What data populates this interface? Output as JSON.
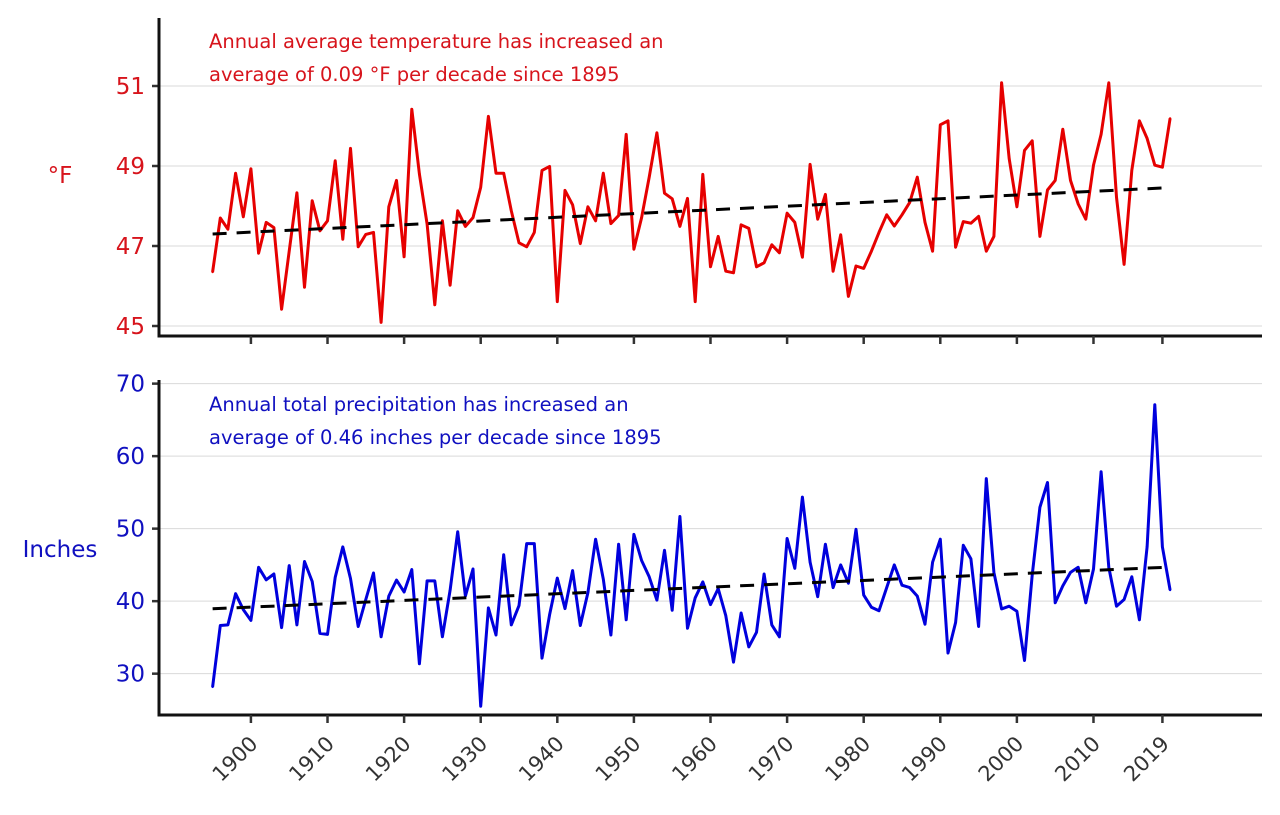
{
  "chart_data": [
    {
      "type": "line",
      "id": "temperature",
      "title": "",
      "annotation": [
        "Annual average temperature has increased an",
        "average of 0.09 °F per decade since 1895"
      ],
      "xlabel": "",
      "ylabel": "°F",
      "color": "#e60000",
      "text_color": "#d7141c",
      "yticks": [
        45,
        47,
        49,
        51
      ],
      "ylim": [
        44.75,
        52.7
      ],
      "xlim": [
        1888,
        2032
      ],
      "grid": true,
      "x": [
        1895,
        1896,
        1897,
        1898,
        1899,
        1900,
        1901,
        1902,
        1903,
        1904,
        1905,
        1906,
        1907,
        1908,
        1909,
        1910,
        1911,
        1912,
        1913,
        1914,
        1915,
        1916,
        1917,
        1918,
        1919,
        1920,
        1921,
        1922,
        1923,
        1924,
        1925,
        1926,
        1927,
        1928,
        1929,
        1930,
        1931,
        1932,
        1933,
        1934,
        1935,
        1936,
        1937,
        1938,
        1939,
        1940,
        1941,
        1942,
        1943,
        1944,
        1945,
        1946,
        1947,
        1948,
        1949,
        1950,
        1951,
        1952,
        1953,
        1954,
        1955,
        1956,
        1957,
        1958,
        1959,
        1960,
        1961,
        1962,
        1963,
        1964,
        1965,
        1966,
        1967,
        1968,
        1969,
        1970,
        1971,
        1972,
        1973,
        1974,
        1975,
        1976,
        1977,
        1978,
        1979,
        1980,
        1981,
        1982,
        1983,
        1984,
        1985,
        1986,
        1987,
        1988,
        1989,
        1990,
        1991,
        1992,
        1993,
        1994,
        1995,
        1996,
        1997,
        1998,
        1999,
        2000,
        2001,
        2002,
        2003,
        2004,
        2005,
        2006,
        2007,
        2008,
        2009,
        2010,
        2011,
        2012,
        2013,
        2014,
        2015,
        2016,
        2017,
        2018,
        2019,
        2020
      ],
      "values": [
        46.35,
        47.7,
        47.42,
        48.82,
        47.73,
        48.93,
        46.82,
        47.59,
        47.46,
        45.42,
        46.87,
        48.33,
        45.97,
        48.13,
        47.38,
        47.63,
        49.13,
        47.17,
        49.44,
        46.98,
        47.29,
        47.34,
        45.09,
        47.98,
        48.64,
        46.73,
        50.42,
        48.8,
        47.55,
        45.53,
        47.63,
        46.02,
        47.88,
        47.49,
        47.71,
        48.47,
        50.24,
        48.82,
        48.82,
        47.88,
        47.08,
        46.98,
        47.34,
        48.89,
        48.99,
        45.61,
        48.39,
        48.03,
        47.06,
        47.98,
        47.63,
        48.82,
        47.56,
        47.76,
        49.79,
        46.92,
        47.71,
        48.72,
        49.83,
        48.32,
        48.18,
        47.49,
        48.19,
        45.61,
        48.79,
        46.48,
        47.24,
        46.37,
        46.33,
        47.53,
        47.44,
        46.48,
        46.58,
        47.03,
        46.83,
        47.82,
        47.59,
        46.72,
        49.04,
        47.67,
        48.29,
        46.37,
        47.28,
        45.74,
        46.5,
        46.44,
        46.87,
        47.34,
        47.78,
        47.5,
        47.78,
        48.09,
        48.72,
        47.59,
        46.87,
        50.03,
        50.13,
        46.97,
        47.61,
        47.57,
        47.74,
        46.87,
        47.24,
        51.08,
        49.18,
        47.98,
        49.39,
        49.63,
        47.24,
        48.4,
        48.64,
        49.92,
        48.64,
        48.05,
        47.67,
        49.02,
        49.79,
        51.08,
        48.22,
        46.54,
        48.89,
        50.13,
        49.69,
        49.02,
        48.97,
        50.19
      ],
      "trend": {
        "x": [
          1895,
          2020
        ],
        "values": [
          47.3,
          48.46
        ],
        "rate_per_decade": 0.09
      }
    },
    {
      "type": "line",
      "id": "precipitation",
      "title": "",
      "annotation": [
        "Annual total precipitation has increased an",
        "average of 0.46 inches per decade since 1895"
      ],
      "xlabel": "",
      "ylabel": "Inches",
      "color": "#0000dd",
      "text_color": "#1010c0",
      "yticks": [
        30,
        40,
        50,
        60,
        70
      ],
      "ylim": [
        24.3,
        70.5
      ],
      "xlim": [
        1888,
        2032
      ],
      "grid": true,
      "x": [
        1895,
        1896,
        1897,
        1898,
        1899,
        1900,
        1901,
        1902,
        1903,
        1904,
        1905,
        1906,
        1907,
        1908,
        1909,
        1910,
        1911,
        1912,
        1913,
        1914,
        1915,
        1916,
        1917,
        1918,
        1919,
        1920,
        1921,
        1922,
        1923,
        1924,
        1925,
        1926,
        1927,
        1928,
        1929,
        1930,
        1931,
        1932,
        1933,
        1934,
        1935,
        1936,
        1937,
        1938,
        1939,
        1940,
        1941,
        1942,
        1943,
        1944,
        1945,
        1946,
        1947,
        1948,
        1949,
        1950,
        1951,
        1952,
        1953,
        1954,
        1955,
        1956,
        1957,
        1958,
        1959,
        1960,
        1961,
        1962,
        1963,
        1964,
        1965,
        1966,
        1967,
        1968,
        1969,
        1970,
        1971,
        1972,
        1973,
        1974,
        1975,
        1976,
        1977,
        1978,
        1979,
        1980,
        1981,
        1982,
        1983,
        1984,
        1985,
        1986,
        1987,
        1988,
        1989,
        1990,
        1991,
        1992,
        1993,
        1994,
        1995,
        1996,
        1997,
        1998,
        1999,
        2000,
        2001,
        2002,
        2003,
        2004,
        2005,
        2006,
        2007,
        2008,
        2009,
        2010,
        2011,
        2012,
        2013,
        2014,
        2015,
        2016,
        2017,
        2018,
        2019,
        2020
      ],
      "values": [
        28.18,
        36.64,
        36.73,
        41.03,
        38.83,
        37.34,
        44.67,
        42.94,
        43.74,
        36.36,
        44.91,
        36.73,
        45.47,
        42.71,
        35.56,
        35.42,
        43.27,
        47.48,
        43.13,
        36.5,
        40.23,
        43.88,
        35.09,
        40.7,
        42.9,
        41.26,
        44.35,
        31.36,
        42.8,
        42.8,
        35.09,
        41.5,
        49.58,
        40.7,
        44.44,
        25.51,
        39.07,
        35.33,
        46.4,
        36.73,
        39.39,
        47.94,
        47.94,
        32.15,
        38.13,
        43.18,
        38.97,
        44.21,
        36.64,
        41.17,
        48.55,
        43.04,
        35.33,
        47.85,
        37.43,
        49.21,
        45.61,
        43.36,
        40.14,
        47.01,
        38.74,
        51.68,
        36.26,
        40.47,
        42.66,
        39.53,
        41.73,
        37.99,
        31.59,
        38.36,
        33.69,
        35.7,
        43.74,
        36.73,
        35.09,
        48.64,
        44.53,
        54.35,
        45.37,
        40.61,
        47.85,
        41.87,
        45.0,
        42.48,
        49.91,
        40.84,
        39.16,
        38.69,
        41.87,
        45.0,
        42.2,
        41.87,
        40.7,
        36.82,
        45.37,
        48.55,
        32.85,
        37.06,
        47.71,
        45.84,
        36.5,
        56.9,
        43.97,
        38.93,
        39.3,
        38.6,
        31.82,
        43.6,
        52.94,
        56.36,
        39.77,
        42.1,
        43.97,
        44.67,
        39.77,
        44.44,
        57.85,
        44.67,
        39.3,
        40.23,
        43.36,
        37.43,
        47.48,
        67.1,
        47.48,
        41.54
      ],
      "trend": {
        "x": [
          1895,
          2020
        ],
        "values": [
          38.95,
          44.7
        ],
        "rate_per_decade": 0.46
      }
    }
  ],
  "xticks": [
    1900,
    1910,
    1920,
    1930,
    1940,
    1950,
    1960,
    1970,
    1980,
    1990,
    2000,
    2010,
    2019
  ],
  "xtick_labels": [
    "1900",
    "1910",
    "1920",
    "1930",
    "1940",
    "1950",
    "1960",
    "1970",
    "1980",
    "1990",
    "2000",
    "2010",
    "2019"
  ]
}
